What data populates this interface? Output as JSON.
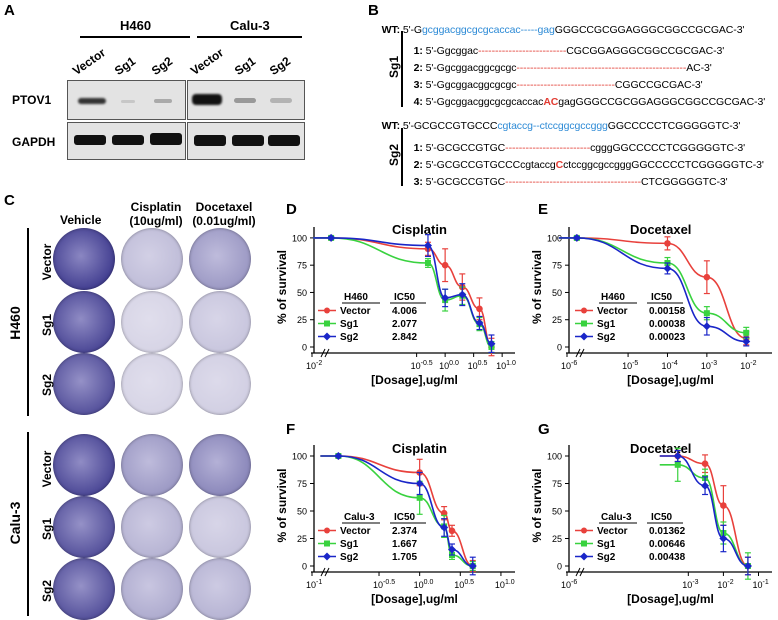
{
  "panelA": {
    "letter": "A",
    "groups": [
      "H460",
      "Calu-3"
    ],
    "lanes": [
      "Vector",
      "Sg1",
      "Sg2",
      "Vector",
      "Sg1",
      "Sg2"
    ],
    "rows": [
      "PTOV1",
      "GAPDH"
    ]
  },
  "panelB": {
    "letter": "B",
    "sg1_label": "Sg1",
    "sg2_label": "Sg2",
    "wt1": {
      "tag": "WT:",
      "pre": "5'-G",
      "blue": "gcggacggcgcgcaccac-----gag",
      "post": "GGGCCGCGGAGGGCGGCCGCGAC-3'"
    },
    "sg1": [
      {
        "n": "1:",
        "pre": "5'-Ggcggac",
        "dash": "--------------------------",
        "post": "CGCGGAGGGCGGCCGCGAC-3'"
      },
      {
        "n": "2:",
        "pre": "5'-Ggcggacggcgcgc",
        "dash": "--------------------------------------------------",
        "post": "AC-3'"
      },
      {
        "n": "3:",
        "pre": "5'-Ggcggacggcgcgc",
        "dash": "-----------------------------",
        "post": "CGGCCGCGAC-3'"
      },
      {
        "n": "4:",
        "pre": "5'-Ggcggacggcgcgcaccac",
        "red": "AC",
        "post": "gagGGGCCGCGGAGGGCGGCCGCGAC-3'"
      }
    ],
    "wt2": {
      "tag": "WT:",
      "pre": "5'-GCGCCGTGCCC",
      "blue": "cgtaccg--ctccggcgccggg",
      "post": "GGCCCCCTCGGGGGTC-3'"
    },
    "sg2": [
      {
        "n": "1:",
        "pre": "5'-GCGCCGTGC",
        "dash": "-------------------------",
        "post": "cgggGGCCCCCTCGGGGGTC-3'"
      },
      {
        "n": "2:",
        "pre": "5'-GCGCCGTGCCCcgtaccg",
        "red": "C",
        "post": "ctccggcgccgggGGCCCCCTCGGGGGTC-3'"
      },
      {
        "n": "3:",
        "pre": "5'-GCGCCGTGC",
        "dash": "----------------------------------------",
        "post": "CTCGGGGGTC-3'"
      }
    ]
  },
  "panelC": {
    "letter": "C",
    "columns": [
      "Vehicle",
      "Cisplatin\n(10ug/ml)",
      "Docetaxel\n(0.01ug/ml)"
    ],
    "col1": "Vehicle",
    "col2a": "Cisplatin",
    "col2b": "(10ug/ml)",
    "col3a": "Docetaxel",
    "col3b": "(0.01ug/ml)",
    "cell_lines": [
      "H460",
      "Calu-3"
    ],
    "rows": [
      "Vector",
      "Sg1",
      "Sg2"
    ]
  },
  "chart_data": [
    {
      "panel": "D",
      "type": "line",
      "title": "Cisplatin",
      "xlabel": "[Dosage],ug/ml",
      "ylabel": "% of survival",
      "xscale": "log",
      "xticks": [
        "10^-2",
        "10^-0.5",
        "10^0.0",
        "10^0.5",
        "10^1.0"
      ],
      "yticks": [
        0,
        25,
        50,
        75,
        100
      ],
      "table_header": [
        "H460",
        "IC50"
      ],
      "series": [
        {
          "name": "Vector",
          "ic50": "4.006",
          "color": "#e8413c",
          "marker": "circle",
          "x": [
            0.01,
            0.5,
            1,
            2,
            4,
            6.5
          ],
          "y": [
            100,
            90,
            75,
            55,
            35,
            0
          ],
          "err": [
            1,
            6,
            15,
            12,
            10,
            8
          ]
        },
        {
          "name": "Sg1",
          "ic50": "2.077",
          "color": "#39d23f",
          "marker": "square",
          "x": [
            0.01,
            0.5,
            1,
            2,
            4,
            6.5
          ],
          "y": [
            100,
            77,
            43,
            47,
            21,
            0
          ],
          "err": [
            1,
            4,
            10,
            8,
            6,
            5
          ]
        },
        {
          "name": "Sg2",
          "ic50": "2.842",
          "color": "#1a26c8",
          "marker": "diamond",
          "x": [
            0.01,
            0.5,
            1,
            2,
            4,
            6.5
          ],
          "y": [
            100,
            93,
            45,
            48,
            22,
            3
          ],
          "err": [
            1,
            10,
            8,
            10,
            6,
            8
          ]
        }
      ]
    },
    {
      "panel": "E",
      "type": "line",
      "title": "Docetaxel",
      "xlabel": "[Dosage],ug/ml",
      "ylabel": "% of survival",
      "xscale": "log",
      "xticks": [
        "10^-6",
        "10^-5",
        "10^-4",
        "10^-3",
        "10^-2"
      ],
      "yticks": [
        0,
        25,
        50,
        75,
        100
      ],
      "table_header": [
        "H460",
        "IC50"
      ],
      "series": [
        {
          "name": "Vector",
          "ic50": "0.00158",
          "color": "#e8413c",
          "marker": "circle",
          "x": [
            5e-07,
            0.0001,
            0.001,
            0.01
          ],
          "y": [
            100,
            95,
            64,
            8
          ],
          "err": [
            1,
            6,
            15,
            6
          ]
        },
        {
          "name": "Sg1",
          "ic50": "0.00038",
          "color": "#39d23f",
          "marker": "square",
          "x": [
            5e-07,
            0.0001,
            0.001,
            0.01
          ],
          "y": [
            100,
            77,
            31,
            13
          ],
          "err": [
            1,
            5,
            6,
            5
          ]
        },
        {
          "name": "Sg2",
          "ic50": "0.00023",
          "color": "#1a26c8",
          "marker": "diamond",
          "x": [
            5e-07,
            0.0001,
            0.001,
            0.01
          ],
          "y": [
            100,
            72,
            19,
            5
          ],
          "err": [
            1,
            5,
            8,
            4
          ]
        }
      ]
    },
    {
      "panel": "F",
      "type": "line",
      "title": "Cisplatin",
      "xlabel": "[Dosage],ug/ml",
      "ylabel": "% of survival",
      "xscale": "log",
      "xticks": [
        "10^-1",
        "10^-0.5",
        "10^0.0",
        "10^0.5",
        "10^1.0"
      ],
      "yticks": [
        0,
        25,
        50,
        75,
        100
      ],
      "table_header": [
        "Calu-3",
        "IC50"
      ],
      "series": [
        {
          "name": "Vector",
          "ic50": "2.374",
          "color": "#e8413c",
          "marker": "circle",
          "x": [
            0.1,
            1,
            2,
            2.5,
            4.5
          ],
          "y": [
            100,
            85,
            48,
            32,
            0
          ],
          "err": [
            1,
            12,
            6,
            5,
            5
          ]
        },
        {
          "name": "Sg1",
          "ic50": "1.667",
          "color": "#39d23f",
          "marker": "square",
          "x": [
            0.1,
            1,
            2,
            2.5,
            4.5
          ],
          "y": [
            100,
            62,
            36,
            10,
            0
          ],
          "err": [
            1,
            15,
            10,
            4,
            4
          ]
        },
        {
          "name": "Sg2",
          "ic50": "1.705",
          "color": "#1a26c8",
          "marker": "diamond",
          "x": [
            0.1,
            1,
            2,
            2.5,
            4.5
          ],
          "y": [
            100,
            75,
            35,
            15,
            0
          ],
          "err": [
            1,
            10,
            8,
            5,
            8
          ]
        }
      ]
    },
    {
      "panel": "G",
      "type": "line",
      "title": "Docetaxel",
      "xlabel": "[Dosage],ug/ml",
      "ylabel": "% of survival",
      "xscale": "log",
      "xticks": [
        "10^-6",
        "10^-3",
        "10^-2",
        "10^-1"
      ],
      "yticks": [
        0,
        25,
        50,
        75,
        100
      ],
      "table_header": [
        "Calu-3",
        "IC50"
      ],
      "series": [
        {
          "name": "Vector",
          "ic50": "0.01362",
          "color": "#e8413c",
          "marker": "circle",
          "x": [
            0.0005,
            0.003,
            0.01,
            0.05
          ],
          "y": [
            100,
            93,
            55,
            0
          ],
          "err": [
            5,
            8,
            18,
            8
          ]
        },
        {
          "name": "Sg1",
          "ic50": "0.00646",
          "color": "#39d23f",
          "marker": "square",
          "x": [
            0.0005,
            0.003,
            0.01,
            0.05
          ],
          "y": [
            92,
            80,
            30,
            0
          ],
          "err": [
            15,
            8,
            10,
            12
          ]
        },
        {
          "name": "Sg2",
          "ic50": "0.00438",
          "color": "#1a26c8",
          "marker": "diamond",
          "x": [
            0.0005,
            0.003,
            0.01,
            0.05
          ],
          "y": [
            100,
            73,
            25,
            0
          ],
          "err": [
            5,
            8,
            12,
            8
          ]
        }
      ]
    }
  ]
}
